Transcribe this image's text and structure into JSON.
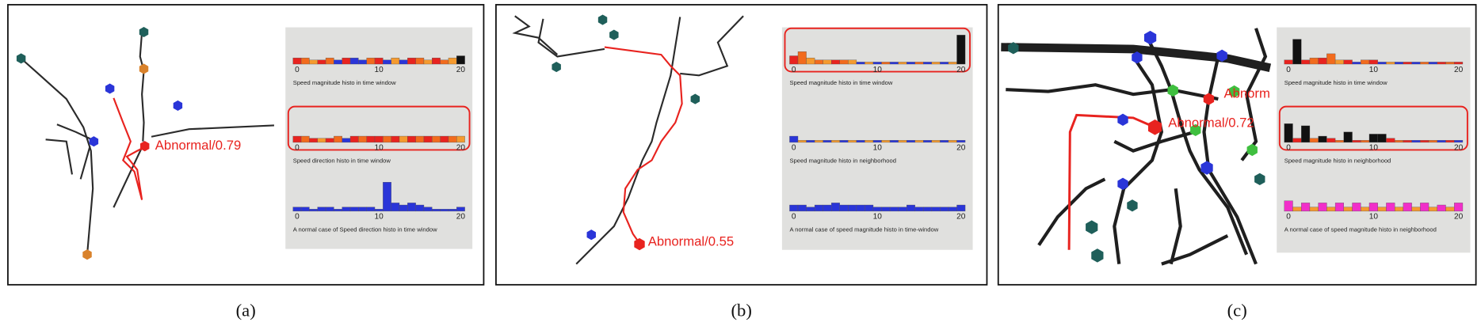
{
  "panels": [
    {
      "label": "(a)",
      "annotations": [
        "Abnormal/0.79"
      ],
      "histograms": [
        {
          "caption": "Speed magnitude histo in time window",
          "ticks": [
            0,
            10,
            20
          ],
          "highlight": false,
          "values": [
            3,
            3,
            2,
            2,
            3,
            2,
            3,
            3,
            2,
            3,
            3,
            2,
            3,
            2,
            3,
            3,
            2,
            3,
            2,
            3,
            4
          ],
          "colors": [
            "#e8231f",
            "#f26b1d",
            "#f59a2e",
            "#e8231f",
            "#f26b1d",
            "#2a35d8",
            "#e8231f",
            "#2a35d8",
            "#2a35d8",
            "#f26b1d",
            "#e8231f",
            "#2a35d8",
            "#f59a2e",
            "#2a35d8",
            "#e8231f",
            "#f26b1d",
            "#f59a2e",
            "#e8231f",
            "#f26b1d",
            "#f59a2e",
            "#111111"
          ]
        },
        {
          "caption": "Speed direction histo in time window",
          "ticks": [
            0,
            10,
            20
          ],
          "highlight": true,
          "values": [
            3,
            3,
            2,
            2,
            2,
            3,
            2,
            3,
            3,
            3,
            3,
            3,
            3,
            3,
            3,
            3,
            3,
            3,
            3,
            3,
            3
          ],
          "colors": [
            "#e8231f",
            "#f26b1d",
            "#e8231f",
            "#f59a2e",
            "#e8231f",
            "#f26b1d",
            "#2a35d8",
            "#e8231f",
            "#f26b1d",
            "#e8231f",
            "#e8231f",
            "#f26b1d",
            "#e8231f",
            "#f59a2e",
            "#e8231f",
            "#f26b1d",
            "#e8231f",
            "#f26b1d",
            "#e8231f",
            "#f26b1d",
            "#f59a2e"
          ]
        },
        {
          "caption": "A normal case of Speed direction histo in time window",
          "ticks": [
            0,
            10,
            20
          ],
          "highlight": false,
          "values": [
            2,
            2,
            1,
            2,
            2,
            1,
            2,
            2,
            2,
            2,
            1,
            14,
            4,
            3,
            4,
            3,
            2,
            1,
            1,
            1,
            2
          ],
          "colors": [
            "#2a35d8",
            "#2a35d8",
            "#2a35d8",
            "#2a35d8",
            "#2a35d8",
            "#2a35d8",
            "#2a35d8",
            "#2a35d8",
            "#2a35d8",
            "#2a35d8",
            "#2a35d8",
            "#2a35d8",
            "#2a35d8",
            "#2a35d8",
            "#2a35d8",
            "#2a35d8",
            "#2a35d8",
            "#2a35d8",
            "#2a35d8",
            "#2a35d8",
            "#2a35d8"
          ]
        }
      ]
    },
    {
      "label": "(b)",
      "annotations": [
        "Abnormal/0.55"
      ],
      "histograms": [
        {
          "caption": "Speed magnitude histo in time window",
          "ticks": [
            0,
            10,
            20
          ],
          "highlight": true,
          "values": [
            4,
            6,
            3,
            2,
            2,
            2,
            2,
            2,
            1,
            1,
            1,
            1,
            1,
            1,
            1,
            1,
            1,
            1,
            1,
            1,
            14
          ],
          "colors": [
            "#e8231f",
            "#f26b1d",
            "#f59a2e",
            "#f26b1d",
            "#f59a2e",
            "#e8231f",
            "#f26b1d",
            "#f59a2e",
            "#2a35d8",
            "#f59a2e",
            "#2a35d8",
            "#f26b1d",
            "#2a35d8",
            "#f59a2e",
            "#2a35d8",
            "#f26b1d",
            "#2a35d8",
            "#f59a2e",
            "#2a35d8",
            "#f59a2e",
            "#111111"
          ]
        },
        {
          "caption": "Speed magnitude histo in neighborhood",
          "ticks": [
            0,
            10,
            20
          ],
          "highlight": false,
          "values": [
            3,
            1,
            1,
            1,
            1,
            1,
            1,
            1,
            1,
            1,
            1,
            1,
            1,
            1,
            1,
            1,
            1,
            1,
            1,
            1,
            1
          ],
          "colors": [
            "#2a35d8",
            "#f59a2e",
            "#2a35d8",
            "#f59a2e",
            "#2a35d8",
            "#f59a2e",
            "#2a35d8",
            "#f59a2e",
            "#2a35d8",
            "#f59a2e",
            "#2a35d8",
            "#f59a2e",
            "#2a35d8",
            "#f59a2e",
            "#2a35d8",
            "#f59a2e",
            "#2a35d8",
            "#f59a2e",
            "#2a35d8",
            "#f59a2e",
            "#2a35d8"
          ]
        },
        {
          "caption": "A normal case of speed magnitude histo in time-window",
          "ticks": [
            0,
            10,
            20
          ],
          "highlight": false,
          "values": [
            3,
            3,
            2,
            3,
            3,
            4,
            3,
            3,
            3,
            3,
            2,
            2,
            2,
            2,
            3,
            2,
            2,
            2,
            2,
            2,
            3
          ],
          "colors": [
            "#2a35d8",
            "#2a35d8",
            "#2a35d8",
            "#2a35d8",
            "#2a35d8",
            "#2a35d8",
            "#2a35d8",
            "#2a35d8",
            "#2a35d8",
            "#2a35d8",
            "#2a35d8",
            "#2a35d8",
            "#2a35d8",
            "#2a35d8",
            "#2a35d8",
            "#2a35d8",
            "#2a35d8",
            "#2a35d8",
            "#2a35d8",
            "#2a35d8",
            "#2a35d8"
          ]
        }
      ]
    },
    {
      "label": "(c)",
      "annotations": [
        "Abnormal/0.72",
        "Abnorm"
      ],
      "histograms": [
        {
          "caption": "Speed magnitude histo in time window",
          "ticks": [
            0,
            10,
            20
          ],
          "highlight": false,
          "values": [
            2,
            12,
            2,
            3,
            3,
            5,
            2,
            2,
            1,
            2,
            2,
            1,
            1,
            1,
            1,
            1,
            1,
            1,
            1,
            1,
            1
          ],
          "colors": [
            "#e8231f",
            "#111111",
            "#e8231f",
            "#f26b1d",
            "#e8231f",
            "#f26b1d",
            "#f59a2e",
            "#e8231f",
            "#2a35d8",
            "#f26b1d",
            "#e8231f",
            "#2a35d8",
            "#f59a2e",
            "#2a35d8",
            "#e8231f",
            "#2a35d8",
            "#f26b1d",
            "#2a35d8",
            "#e8231f",
            "#f26b1d",
            "#e8231f"
          ]
        },
        {
          "caption": "Speed magnitude histo in neighborhood",
          "ticks": [
            0,
            10,
            20
          ],
          "highlight": true,
          "values": [
            9,
            2,
            8,
            2,
            3,
            2,
            1,
            5,
            1,
            1,
            4,
            4,
            2,
            1,
            1,
            1,
            1,
            1,
            1,
            1,
            1
          ],
          "colors": [
            "#111111",
            "#e8231f",
            "#111111",
            "#f26b1d",
            "#111111",
            "#e8231f",
            "#f26b1d",
            "#111111",
            "#e8231f",
            "#f26b1d",
            "#111111",
            "#111111",
            "#e8231f",
            "#f26b1d",
            "#e8231f",
            "#2a35d8",
            "#e8231f",
            "#f26b1d",
            "#2a35d8",
            "#e8231f",
            "#2a35d8"
          ]
        },
        {
          "caption": "A normal case of speed magnitude histo in neighborhood",
          "ticks": [
            0,
            10,
            20
          ],
          "highlight": false,
          "values": [
            5,
            2,
            4,
            2,
            4,
            2,
            4,
            2,
            4,
            2,
            4,
            2,
            4,
            2,
            4,
            2,
            4,
            2,
            3,
            2,
            4
          ],
          "colors": [
            "#f12fc9",
            "#f59a2e",
            "#f12fc9",
            "#f59a2e",
            "#f12fc9",
            "#f59a2e",
            "#f12fc9",
            "#f59a2e",
            "#f12fc9",
            "#f59a2e",
            "#f12fc9",
            "#f59a2e",
            "#f12fc9",
            "#f59a2e",
            "#f12fc9",
            "#f59a2e",
            "#f12fc9",
            "#f59a2e",
            "#f12fc9",
            "#f59a2e",
            "#f12fc9"
          ]
        }
      ]
    }
  ]
}
